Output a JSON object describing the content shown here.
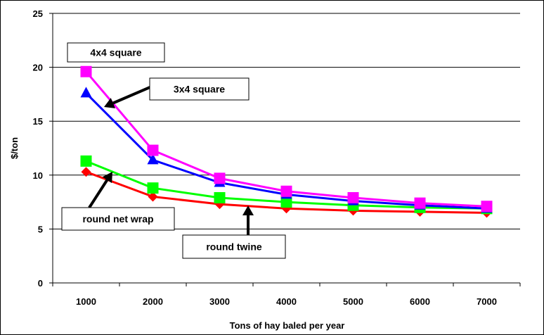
{
  "chart_data": {
    "type": "line",
    "title": "",
    "xlabel": "Tons of hay baled per year",
    "ylabel": "$/ton",
    "x": [
      1000,
      2000,
      3000,
      4000,
      5000,
      6000,
      7000
    ],
    "categories": [
      "1000",
      "2000",
      "3000",
      "4000",
      "5000",
      "6000",
      "7000"
    ],
    "ylim": [
      0,
      25
    ],
    "yticks": [
      "0",
      "5",
      "10",
      "15",
      "20",
      "25"
    ],
    "grid": true,
    "series": [
      {
        "name": "4x4 square",
        "color": "#ff00ff",
        "marker": "square",
        "values": [
          19.6,
          12.3,
          9.7,
          8.5,
          7.9,
          7.4,
          7.1
        ]
      },
      {
        "name": "3x4 square",
        "color": "#0000ff",
        "marker": "triangle",
        "values": [
          17.6,
          11.4,
          9.3,
          8.2,
          7.6,
          7.2,
          6.9
        ]
      },
      {
        "name": "round net wrap",
        "color": "#00ff00",
        "marker": "square",
        "values": [
          11.3,
          8.8,
          7.9,
          7.5,
          7.2,
          7.0,
          6.9
        ]
      },
      {
        "name": "round twine",
        "color": "#ff0000",
        "marker": "diamond",
        "values": [
          10.3,
          8.0,
          7.3,
          6.9,
          6.7,
          6.6,
          6.5
        ]
      }
    ],
    "annotations": [
      {
        "text": "4x4 square"
      },
      {
        "text": "3x4 square"
      },
      {
        "text": "round net wrap"
      },
      {
        "text": "round twine"
      }
    ]
  }
}
